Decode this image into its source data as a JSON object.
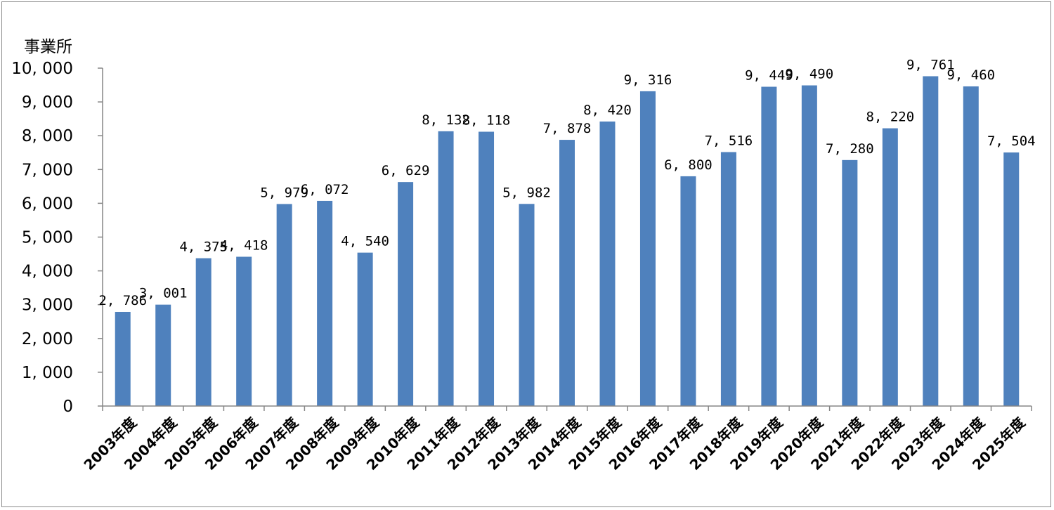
{
  "chart_data": {
    "type": "bar",
    "unit_label": "事業所",
    "categories": [
      "2003年度",
      "2004年度",
      "2005年度",
      "2006年度",
      "2007年度",
      "2008年度",
      "2009年度",
      "2010年度",
      "2011年度",
      "2012年度",
      "2013年度",
      "2014年度",
      "2015年度",
      "2016年度",
      "2017年度",
      "2018年度",
      "2019年度",
      "2020年度",
      "2021年度",
      "2022年度",
      "2023年度",
      "2024年度",
      "2025年度"
    ],
    "values": [
      2786,
      3001,
      4375,
      4418,
      5979,
      6072,
      4540,
      6629,
      8132,
      8118,
      5982,
      7878,
      8420,
      9316,
      6800,
      7516,
      9449,
      9490,
      7280,
      8220,
      9761,
      9460,
      7504
    ],
    "data_labels": [
      "2, 786",
      "3, 001",
      "4, 375",
      "4, 418",
      "5, 979",
      "6, 072",
      "4, 540",
      "6, 629",
      "8, 132",
      "8, 118",
      "5, 982",
      "7, 878",
      "8, 420",
      "9, 316",
      "6, 800",
      "7, 516",
      "9, 449",
      "9, 490",
      "7, 280",
      "8, 220",
      "9, 761",
      "9, 460",
      "7, 504"
    ],
    "yticks": [
      0,
      1000,
      2000,
      3000,
      4000,
      5000,
      6000,
      7000,
      8000,
      9000,
      10000
    ],
    "ytick_labels": [
      "0",
      "1, 000",
      "2, 000",
      "3, 000",
      "4, 000",
      "5, 000",
      "6, 000",
      "7, 000",
      "8, 000",
      "9, 000",
      "10, 000"
    ],
    "ylim": [
      0,
      10000
    ],
    "bar_color": "#4f81bd",
    "axis_color": "#868686",
    "grid": false,
    "legend": "none"
  }
}
